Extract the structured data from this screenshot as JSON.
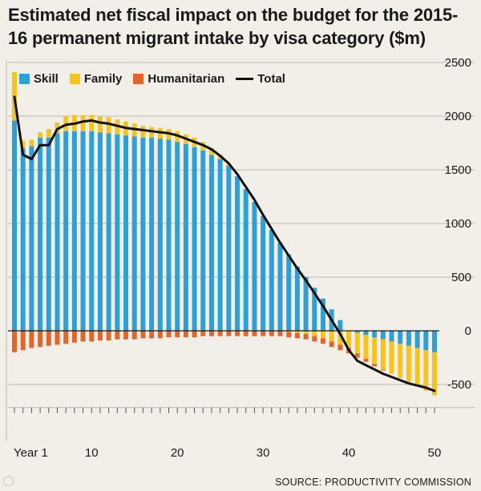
{
  "chart_data": {
    "type": "bar",
    "title": "Estimated net fiscal impact on the budget for the 2015-16 permanent migrant intake by visa category ($m)",
    "source": "SOURCE: PRODUCTIVITY COMMISSION",
    "x": [
      1,
      2,
      3,
      4,
      5,
      6,
      7,
      8,
      9,
      10,
      11,
      12,
      13,
      14,
      15,
      16,
      17,
      18,
      19,
      20,
      21,
      22,
      23,
      24,
      25,
      26,
      27,
      28,
      29,
      30,
      31,
      32,
      33,
      34,
      35,
      36,
      37,
      38,
      39,
      40,
      41,
      42,
      43,
      44,
      45,
      46,
      47,
      48,
      49,
      50
    ],
    "x_ticks": [
      {
        "value": 1,
        "label": "Year 1"
      },
      {
        "value": 10,
        "label": "10"
      },
      {
        "value": 20,
        "label": "20"
      },
      {
        "value": 30,
        "label": "30"
      },
      {
        "value": 40,
        "label": "40"
      },
      {
        "value": 50,
        "label": "50"
      }
    ],
    "ylim": [
      -700,
      2500
    ],
    "y_ticks": [
      2500,
      2000,
      1500,
      1000,
      500,
      0,
      -500
    ],
    "stacked": true,
    "series": [
      {
        "name": "Skill",
        "color": "#2ea0d6",
        "values": [
          1960,
          1700,
          1720,
          1800,
          1800,
          1840,
          1860,
          1860,
          1860,
          1860,
          1850,
          1840,
          1830,
          1820,
          1810,
          1800,
          1800,
          1790,
          1780,
          1760,
          1740,
          1710,
          1680,
          1640,
          1600,
          1540,
          1440,
          1320,
          1200,
          1070,
          940,
          820,
          710,
          600,
          500,
          400,
          300,
          200,
          100,
          0,
          -20,
          -40,
          -60,
          -80,
          -100,
          -120,
          -140,
          -160,
          -180,
          -200
        ]
      },
      {
        "name": "Family",
        "color": "#f6c51d",
        "values": [
          450,
          70,
          60,
          50,
          80,
          100,
          140,
          150,
          150,
          150,
          150,
          150,
          140,
          130,
          120,
          110,
          100,
          100,
          100,
          100,
          90,
          90,
          80,
          60,
          40,
          20,
          0,
          0,
          0,
          0,
          0,
          0,
          -10,
          -20,
          -30,
          -50,
          -70,
          -100,
          -130,
          -160,
          -190,
          -220,
          -250,
          -280,
          -300,
          -320,
          -340,
          -360,
          -380,
          -400
        ]
      },
      {
        "name": "Humanitarian",
        "color": "#e2662a",
        "values": [
          -200,
          -180,
          -160,
          -150,
          -140,
          -130,
          -120,
          -110,
          -100,
          -100,
          -90,
          -90,
          -80,
          -80,
          -80,
          -70,
          -70,
          -70,
          -60,
          -60,
          -60,
          -60,
          -50,
          -50,
          -50,
          -50,
          -50,
          -50,
          -50,
          -50,
          -50,
          -50,
          -50,
          -50,
          -50,
          -50,
          -50,
          -50,
          -50,
          -50,
          -40,
          -30,
          -20,
          -10,
          0,
          0,
          0,
          0,
          0,
          0
        ]
      },
      {
        "name": "Total",
        "color": "#111111",
        "type": "line",
        "values": [
          2180,
          1640,
          1600,
          1730,
          1730,
          1880,
          1920,
          1930,
          1950,
          1960,
          1940,
          1930,
          1910,
          1890,
          1880,
          1870,
          1860,
          1850,
          1840,
          1820,
          1790,
          1760,
          1730,
          1690,
          1630,
          1560,
          1460,
          1340,
          1220,
          1080,
          950,
          820,
          700,
          580,
          470,
          350,
          230,
          100,
          -30,
          -180,
          -280,
          -320,
          -360,
          -400,
          -430,
          -460,
          -490,
          -510,
          -530,
          -560
        ]
      }
    ]
  }
}
